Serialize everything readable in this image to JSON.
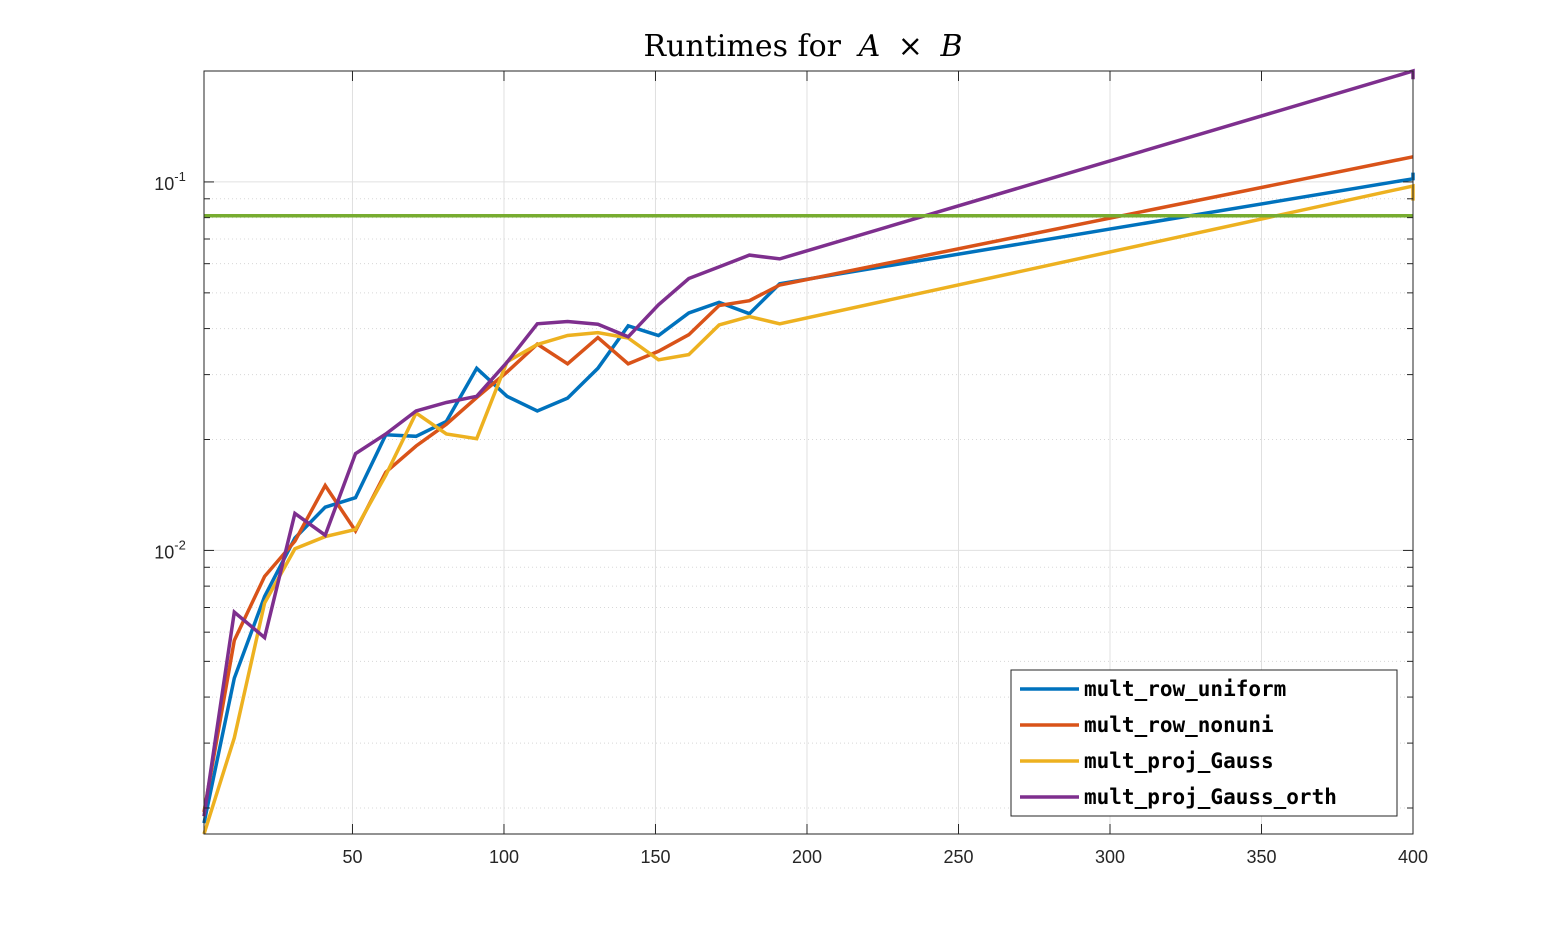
{
  "chart_data": {
    "type": "line",
    "title_parts": [
      "Runtimes for",
      "A",
      "×",
      "B"
    ],
    "xlabel": "",
    "ylabel": "",
    "xlim": [
      1,
      400
    ],
    "ylim": [
      0.0017,
      0.2
    ],
    "y_scale": "log",
    "grid": true,
    "minor_grid_y": true,
    "legend_position": "bottom-right",
    "x_ticks": [
      50,
      100,
      150,
      200,
      250,
      300,
      350,
      400
    ],
    "x_tick_labels": [
      "50",
      "100",
      "150",
      "200",
      "250",
      "300",
      "350",
      "400"
    ],
    "y_ticks": [
      0.01,
      0.1
    ],
    "y_tick_labels": [
      {
        "base": "10",
        "exp": "-2"
      },
      {
        "base": "10",
        "exp": "-1"
      }
    ],
    "series": [
      {
        "name": "mult_row_uniform",
        "color": "#0072BD",
        "x": [
          1,
          11,
          21,
          31,
          41,
          51,
          61,
          71,
          81,
          91,
          101,
          111,
          121,
          131,
          141,
          151,
          161,
          171,
          181,
          191,
          400,
          400
        ],
        "y": [
          0.00182,
          0.0045,
          0.0075,
          0.0108,
          0.0131,
          0.0139,
          0.0206,
          0.0204,
          0.0224,
          0.0312,
          0.0262,
          0.0239,
          0.0259,
          0.0312,
          0.0407,
          0.0383,
          0.0441,
          0.0471,
          0.0439,
          0.0529,
          0.102,
          0.106
        ]
      },
      {
        "name": "mult_row_nonuni",
        "color": "#D95319",
        "x": [
          1,
          11,
          21,
          31,
          41,
          51,
          61,
          71,
          81,
          91,
          101,
          111,
          121,
          131,
          141,
          151,
          161,
          171,
          181,
          191,
          400
        ],
        "y": [
          0.00195,
          0.0057,
          0.0085,
          0.0106,
          0.015,
          0.0113,
          0.0163,
          0.0192,
          0.022,
          0.026,
          0.0305,
          0.0363,
          0.0321,
          0.0378,
          0.0321,
          0.0347,
          0.0385,
          0.0462,
          0.0476,
          0.0525,
          0.117
        ]
      },
      {
        "name": "mult_proj_Gauss",
        "color": "#EDB120",
        "x": [
          1,
          11,
          21,
          31,
          41,
          51,
          61,
          71,
          81,
          91,
          101,
          111,
          121,
          131,
          141,
          151,
          161,
          171,
          181,
          191,
          400,
          400
        ],
        "y": [
          0.0017,
          0.0031,
          0.0072,
          0.0101,
          0.0109,
          0.0114,
          0.016,
          0.0236,
          0.0207,
          0.0201,
          0.0325,
          0.0362,
          0.0383,
          0.039,
          0.0377,
          0.0329,
          0.034,
          0.0409,
          0.0431,
          0.0412,
          0.0975,
          0.089
        ]
      },
      {
        "name": "mult_proj_Gauss_orth",
        "color": "#7E2F8E",
        "x": [
          1,
          11,
          21,
          31,
          41,
          51,
          61,
          71,
          81,
          91,
          101,
          111,
          121,
          131,
          141,
          151,
          161,
          171,
          181,
          191,
          400,
          400
        ],
        "y": [
          0.0019,
          0.0068,
          0.0058,
          0.0126,
          0.011,
          0.0183,
          0.0207,
          0.0239,
          0.0252,
          0.0262,
          0.0324,
          0.0412,
          0.0418,
          0.0411,
          0.038,
          0.0464,
          0.0547,
          0.0588,
          0.0633,
          0.0618,
          0.2,
          0.19
        ]
      },
      {
        "name": "",
        "color": "#77AC30",
        "x": [
          1,
          400
        ],
        "y": [
          0.081,
          0.081
        ]
      }
    ],
    "legend": [
      {
        "label": "mult_row_uniform",
        "color": "#0072BD"
      },
      {
        "label": "mult_row_nonuni",
        "color": "#D95319"
      },
      {
        "label": "mult_proj_Gauss",
        "color": "#EDB120"
      },
      {
        "label": "mult_proj_Gauss_orth",
        "color": "#7E2F8E"
      }
    ]
  }
}
